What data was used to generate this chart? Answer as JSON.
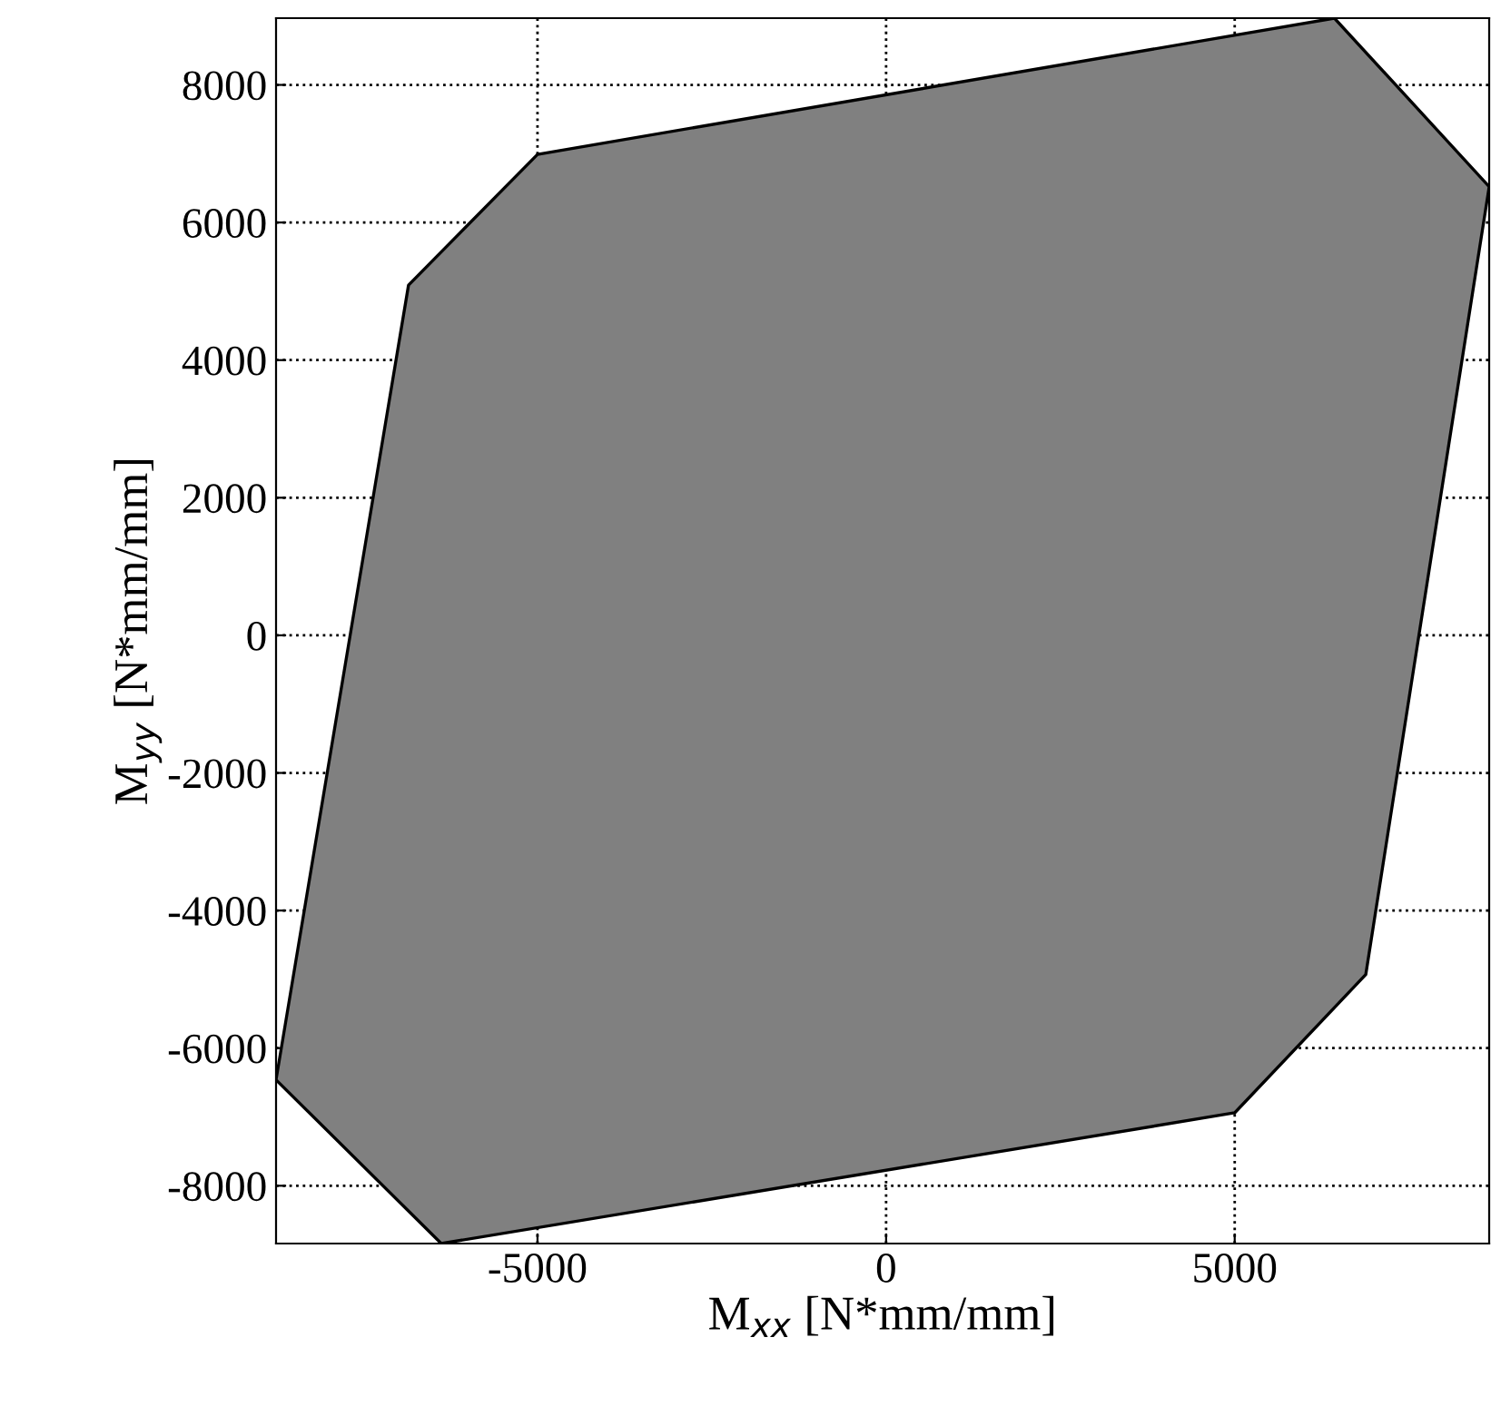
{
  "chart_data": {
    "type": "area",
    "xlabel": "M$_{xx}$ [N*mm/mm]",
    "ylabel": "M$_{yy}$ [N*mm/mm]",
    "series": [
      {
        "color": "#808080",
        "x": [
          -5000,
          -6850,
          -8750,
          -8750,
          -6380,
          5000,
          6880,
          8650,
          8650,
          6430,
          -5000
        ],
        "values": [
          6990,
          5090,
          -6460,
          -6460,
          -8840,
          -6940,
          -4930,
          6520,
          6520,
          8970,
          6990
        ]
      }
    ],
    "xlim": [
      -8750,
      8650
    ],
    "ylim": [
      -8840,
      8970
    ],
    "xticks": [
      -5000,
      0,
      5000
    ],
    "yticks": [
      -8000,
      -6000,
      -4000,
      -2000,
      0,
      2000,
      4000,
      6000,
      8000
    ],
    "grid": true,
    "line_style": "dotted"
  }
}
